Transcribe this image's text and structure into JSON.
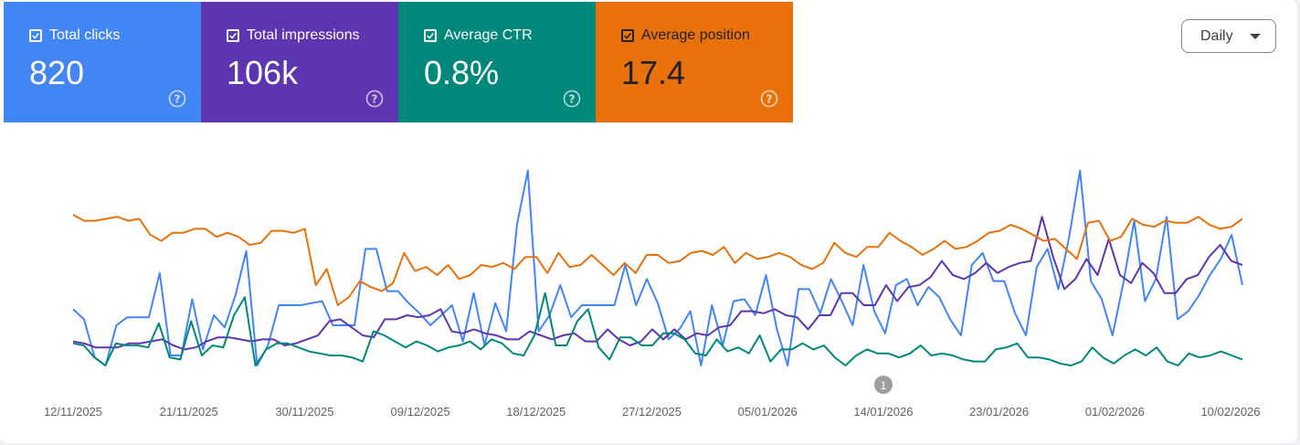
{
  "metrics": [
    {
      "label": "Total clicks",
      "value": "820",
      "color": "#4285f4"
    },
    {
      "label": "Total impressions",
      "value": "106k",
      "color": "#5e35b1"
    },
    {
      "label": "Average CTR",
      "value": "0.8%",
      "color": "#00897b"
    },
    {
      "label": "Average position",
      "value": "17.4",
      "color": "#e8710a"
    }
  ],
  "period_select": {
    "label": "Daily"
  },
  "annotation_marker": "1",
  "icons": {
    "checkbox": "checkbox-checked-icon",
    "help": "help-circle-icon",
    "dropdown": "caret-down-icon"
  },
  "chart_data": {
    "type": "line",
    "x_ticks": [
      "12/11/2025",
      "21/11/2025",
      "30/11/2025",
      "09/12/2025",
      "18/12/2025",
      "27/12/2025",
      "05/01/2026",
      "14/01/2026",
      "23/01/2026",
      "01/02/2026",
      "10/02/2026"
    ],
    "x_start": "11/11/2025",
    "x_end": "11/02/2026",
    "grid": false,
    "series_scale_note": "each series drawn on its own hidden scale, values given as approximate normalized level 0-100",
    "series": [
      {
        "name": "Total clicks",
        "color": "#4285f4",
        "values": [
          28,
          23,
          4,
          0,
          20,
          24,
          24,
          24,
          46,
          5,
          5,
          33,
          8,
          25,
          19,
          35,
          57,
          0,
          10,
          30,
          30,
          30,
          31,
          32,
          20,
          20,
          20,
          58,
          58,
          37,
          37,
          31,
          26,
          20,
          25,
          30,
          12,
          36,
          10,
          31,
          17,
          70,
          97,
          17,
          25,
          40,
          24,
          30,
          30,
          30,
          30,
          50,
          30,
          43,
          31,
          13,
          18,
          27,
          0,
          30,
          10,
          32,
          33,
          25,
          45,
          18,
          0,
          38,
          38,
          26,
          43,
          32,
          20,
          50,
          27,
          16,
          40,
          43,
          30,
          39,
          34,
          23,
          15,
          50,
          56,
          42,
          42,
          26,
          15,
          49,
          58,
          38,
          64,
          97,
          42,
          33,
          15,
          41,
          72,
          32,
          43,
          74,
          23,
          27,
          35,
          45,
          53,
          65,
          40
        ]
      },
      {
        "name": "Total impressions",
        "color": "#5e35b1",
        "values": [
          12,
          11,
          9,
          9,
          9,
          11,
          11,
          12,
          13,
          10,
          8,
          9,
          12,
          14,
          14,
          13,
          12,
          13,
          13,
          10,
          11,
          13,
          15,
          22,
          23,
          19,
          15,
          14,
          23,
          23,
          25,
          24,
          25,
          28,
          17,
          16,
          18,
          16,
          15,
          13,
          13,
          17,
          15,
          13,
          15,
          16,
          12,
          12,
          18,
          13,
          10,
          12,
          18,
          13,
          18,
          13,
          16,
          15,
          19,
          20,
          27,
          27,
          26,
          28,
          25,
          24,
          18,
          25,
          25,
          36,
          36,
          30,
          30,
          40,
          32,
          39,
          40,
          44,
          52,
          45,
          43,
          46,
          51,
          46,
          49,
          51,
          52,
          74,
          54,
          38,
          43,
          53,
          45,
          63,
          45,
          41,
          51,
          46,
          36,
          36,
          43,
          45,
          54,
          60,
          52,
          50
        ]
      },
      {
        "name": "Average CTR",
        "color": "#00897b",
        "values": [
          11,
          10,
          4,
          0,
          11,
          10,
          10,
          9,
          21,
          4,
          3,
          22,
          5,
          10,
          9,
          25,
          34,
          0,
          8,
          11,
          11,
          9,
          7,
          6,
          5,
          5,
          4,
          2,
          17,
          15,
          12,
          9,
          12,
          10,
          7,
          9,
          10,
          12,
          8,
          13,
          11,
          6,
          5,
          15,
          36,
          10,
          10,
          22,
          28,
          9,
          3,
          14,
          14,
          10,
          10,
          16,
          16,
          13,
          6,
          5,
          13,
          7,
          9,
          6,
          15,
          2,
          8,
          8,
          11,
          8,
          10,
          4,
          0,
          5,
          8,
          6,
          6,
          4,
          6,
          10,
          5,
          6,
          5,
          3,
          2,
          2,
          8,
          9,
          11,
          4,
          4,
          3,
          1,
          0,
          2,
          9,
          4,
          1,
          5,
          8,
          5,
          9,
          2,
          0,
          6,
          4,
          5,
          7,
          5,
          3
        ]
      },
      {
        "name": "Average position",
        "color": "#e8710a",
        "values": [
          75,
          72,
          72,
          73,
          74,
          72,
          73,
          65,
          62,
          66,
          66,
          68,
          68,
          64,
          66,
          64,
          60,
          61,
          67,
          67,
          66,
          68,
          40,
          48,
          30,
          34,
          42,
          39,
          37,
          41,
          56,
          47,
          49,
          45,
          50,
          43,
          45,
          50,
          49,
          51,
          48,
          54,
          54,
          46,
          56,
          49,
          50,
          55,
          50,
          45,
          51,
          46,
          55,
          55,
          51,
          52,
          56,
          57,
          55,
          59,
          51,
          56,
          53,
          54,
          56,
          54,
          50,
          48,
          51,
          61,
          56,
          54,
          59,
          59,
          66,
          62,
          59,
          55,
          58,
          62,
          58,
          59,
          62,
          66,
          67,
          70,
          68,
          65,
          62,
          63,
          58,
          53,
          71,
          72,
          62,
          64,
          73,
          70,
          69,
          72,
          71,
          71,
          74,
          70,
          68,
          69,
          73
        ]
      }
    ]
  }
}
